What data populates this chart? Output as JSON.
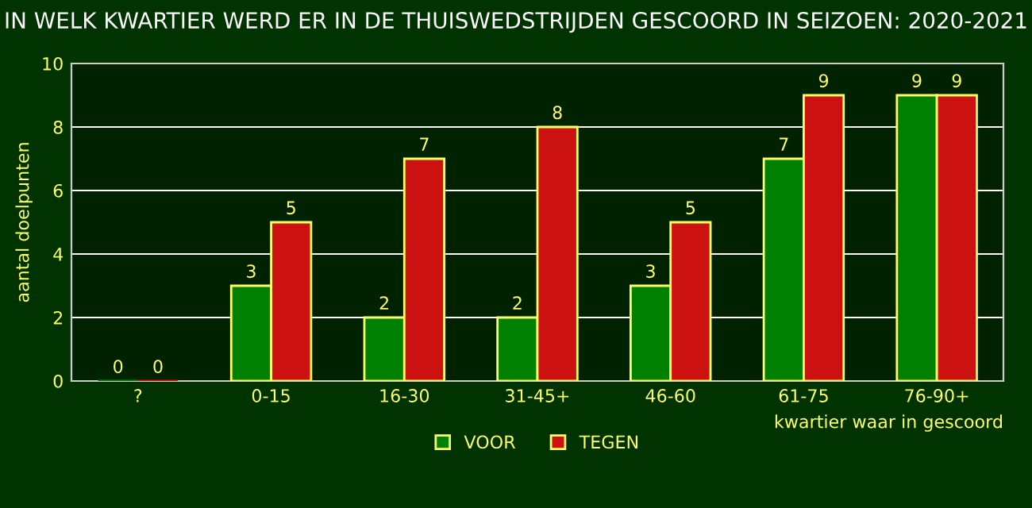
{
  "chart_data": {
    "type": "bar",
    "title": "IN WELK KWARTIER WERD ER IN DE THUISWEDSTRIJDEN GESCOORD IN SEIZOEN: 2020-2021",
    "xlabel": "kwartier waar in gescoord",
    "ylabel": "aantal doelpunten",
    "categories": [
      "?",
      "0-15",
      "16-30",
      "31-45+",
      "46-60",
      "61-75",
      "76-90+"
    ],
    "series": [
      {
        "name": "VOOR",
        "color": "#008000",
        "values": [
          0,
          3,
          2,
          2,
          3,
          7,
          9
        ]
      },
      {
        "name": "TEGEN",
        "color": "#cc1111",
        "values": [
          0,
          5,
          7,
          8,
          5,
          9,
          9
        ]
      }
    ],
    "ylim": [
      0,
      10
    ],
    "yticks": [
      0,
      2,
      4,
      6,
      8,
      10
    ],
    "grid": "y",
    "legend": "bottom",
    "data_labels": true
  }
}
